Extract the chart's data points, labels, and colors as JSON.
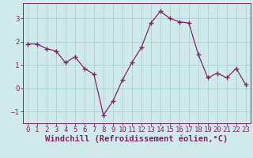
{
  "x": [
    0,
    1,
    2,
    3,
    4,
    5,
    6,
    7,
    8,
    9,
    10,
    11,
    12,
    13,
    14,
    15,
    16,
    17,
    18,
    19,
    20,
    21,
    22,
    23
  ],
  "y": [
    1.9,
    1.9,
    1.7,
    1.6,
    1.1,
    1.35,
    0.85,
    0.6,
    -1.15,
    -0.55,
    0.35,
    1.1,
    1.75,
    2.8,
    3.3,
    3.0,
    2.85,
    2.8,
    1.45,
    0.45,
    0.65,
    0.45,
    0.85,
    0.15
  ],
  "line_color": "#882266",
  "marker": "+",
  "markersize": 4,
  "linewidth": 0.9,
  "bg_color": "#ceeaea",
  "grid_color": "#aad4d4",
  "xlabel": "Windchill (Refroidissement éolien,°C)",
  "xlim": [
    -0.5,
    23.5
  ],
  "ylim": [
    -1.5,
    3.65
  ],
  "yticks": [
    -1,
    0,
    1,
    2,
    3
  ],
  "xticks": [
    0,
    1,
    2,
    3,
    4,
    5,
    6,
    7,
    8,
    9,
    10,
    11,
    12,
    13,
    14,
    15,
    16,
    17,
    18,
    19,
    20,
    21,
    22,
    23
  ],
  "tick_fontsize": 6.5,
  "xlabel_fontsize": 7.5,
  "label_color": "#882266",
  "tick_color": "#882266",
  "spine_color": "#882266",
  "markeredgewidth": 1.0
}
